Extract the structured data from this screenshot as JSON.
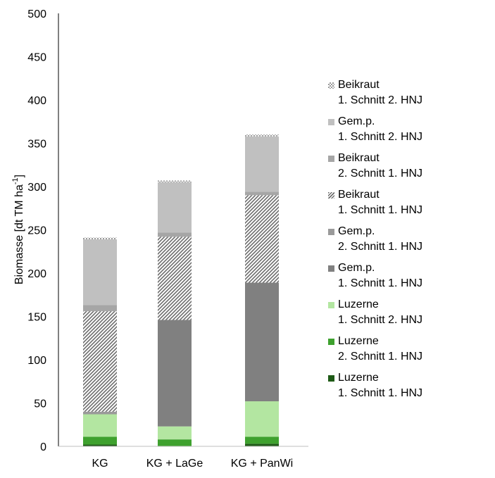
{
  "chart_data": {
    "type": "bar",
    "stacked": true,
    "ylabel": "Biomasse [dt TM ha",
    "ylabel_sup": "-1",
    "ylabel_end": "]",
    "ylim": [
      0,
      500
    ],
    "yticks": [
      0,
      50,
      100,
      150,
      200,
      250,
      300,
      350,
      400,
      450,
      500
    ],
    "grid": false,
    "legend_position": "right",
    "categories": [
      "KG",
      "KG + LaGe",
      "KG + PanWi"
    ],
    "series": [
      {
        "name": "Luzerne",
        "sub": "1. Schnitt 1. HNJ",
        "color": "#1e5a16",
        "pattern": "solid",
        "values": [
          2,
          0,
          3
        ]
      },
      {
        "name": "Luzerne",
        "sub": "2. Schnitt 1. HNJ",
        "color": "#3ea12e",
        "pattern": "solid",
        "values": [
          9,
          8,
          8
        ]
      },
      {
        "name": "Luzerne",
        "sub": "1. Schnitt 2. HNJ",
        "color": "#b3e6a1",
        "pattern": "solid",
        "values": [
          26,
          15,
          41
        ]
      },
      {
        "name": "Gem.p.",
        "sub": "1. Schnitt 1. HNJ",
        "color": "#808080",
        "pattern": "solid",
        "values": [
          0,
          123,
          137
        ]
      },
      {
        "name": "Gem.p.",
        "sub": "2. Schnitt 1. HNJ",
        "color": "#9a9a9a",
        "pattern": "solid",
        "values": [
          3,
          0,
          0
        ]
      },
      {
        "name": "Beikraut",
        "sub": "1. Schnitt 1. HNJ",
        "color": "#808080",
        "pattern": "hatch",
        "values": [
          116,
          96,
          101
        ]
      },
      {
        "name": "Beikraut",
        "sub": "2. Schnitt 1. HNJ",
        "color": "#a6a6a6",
        "pattern": "solid",
        "values": [
          7,
          5,
          4
        ]
      },
      {
        "name": "Gem.p.",
        "sub": "1. Schnitt 2. HNJ",
        "color": "#c0c0c0",
        "pattern": "solid",
        "values": [
          76,
          58,
          64
        ]
      },
      {
        "name": "Beikraut",
        "sub": "1. Schnitt 2. HNJ",
        "color": "#b0b0b0",
        "pattern": "checker",
        "values": [
          2,
          2,
          2
        ]
      }
    ]
  }
}
